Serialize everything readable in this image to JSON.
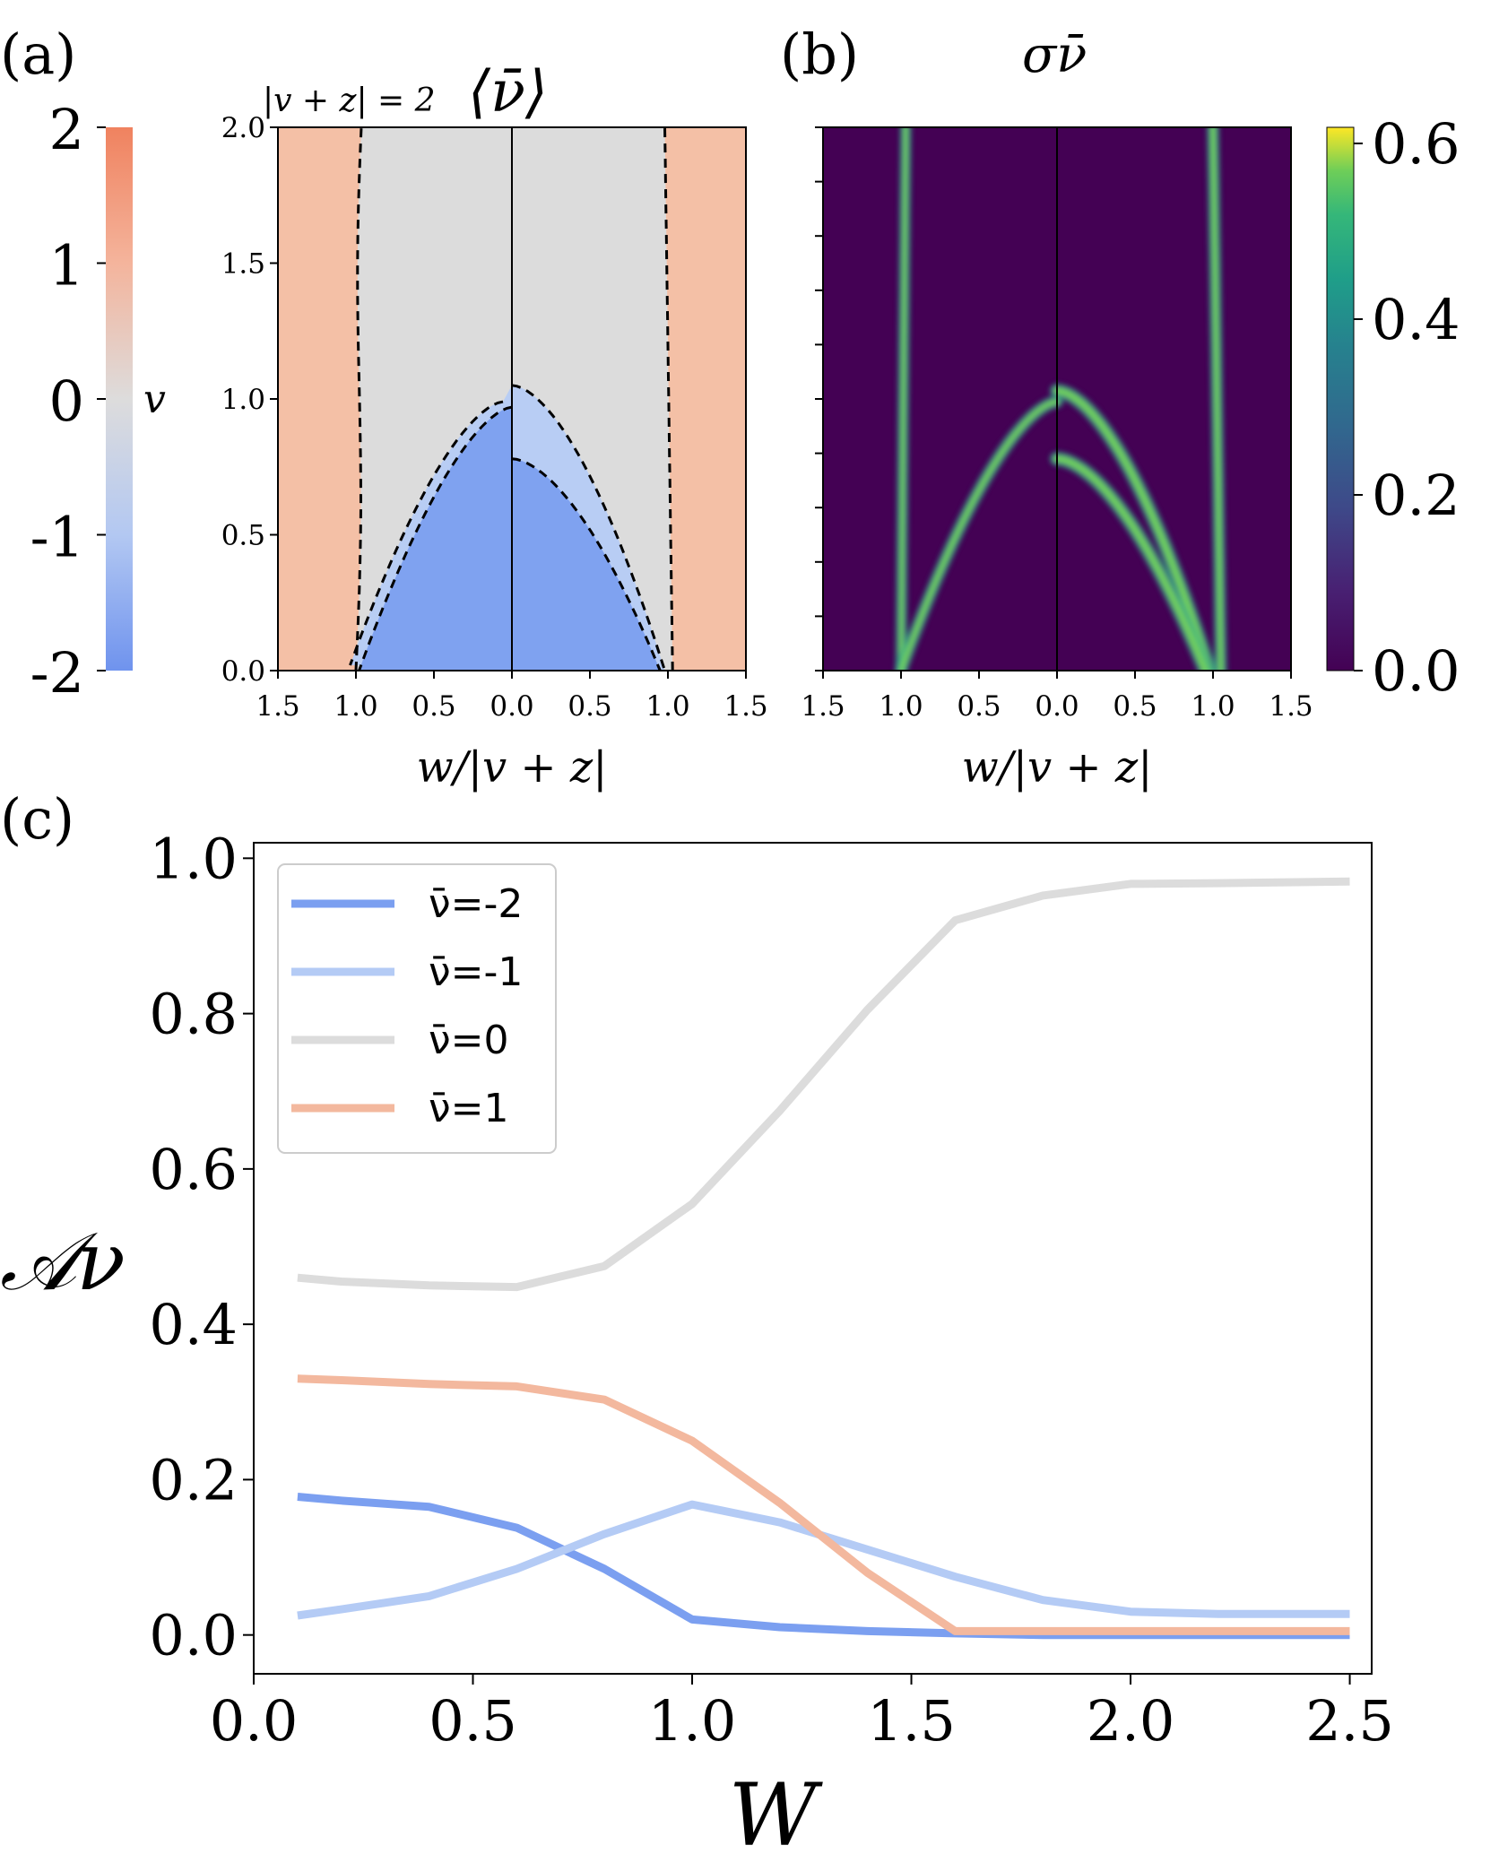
{
  "panels": {
    "a": {
      "label": "(a)"
    },
    "b": {
      "label": "(b)"
    },
    "c": {
      "label": "(c)"
    }
  },
  "colors": {
    "nu_minus2": "#7b9ff0",
    "nu_minus1": "#b4cbf5",
    "nu_0": "#dcdcdc",
    "nu_1": "#f3b89e",
    "viridis_dark": "#440154",
    "viridis_bright": "#7ad151",
    "cmap_red": "#f0825f",
    "cmap_blue": "#6f93ee"
  },
  "chart_data": [
    {
      "type": "heatmap",
      "panel": "a",
      "title_prefix": "|v + z| = 2",
      "title": "⟨ν̄⟩",
      "xlabel": "w/|v + z|",
      "xticks": [
        "1.5",
        "1.0",
        "0.5",
        "0.0",
        "0.5",
        "1.0",
        "1.5"
      ],
      "yticks": [
        "0.0",
        "0.5",
        "1.0",
        "1.5",
        "2.0"
      ],
      "xlim": [
        -1.5,
        1.5
      ],
      "ylim": [
        0.0,
        2.0
      ],
      "colorbar": {
        "label": "v",
        "ticks": [
          "2",
          "1",
          "0",
          "-1",
          "-2"
        ],
        "range": [
          -2,
          2
        ],
        "colors": [
          "#f0825f",
          "#dddcdc",
          "#6f93ee"
        ]
      },
      "boundaries": {
        "outer_left_x": -1.0,
        "outer_right_x": 1.0,
        "dome_left_peak": 0.97,
        "dome_right_outer_peak": 1.05,
        "dome_right_inner_peak": 0.78
      }
    },
    {
      "type": "heatmap",
      "panel": "b",
      "title": "σν̄",
      "xlabel": "w/|v + z|",
      "xticks": [
        "1.5",
        "1.0",
        "0.5",
        "0.0",
        "0.5",
        "1.0",
        "1.5"
      ],
      "xlim": [
        -1.5,
        1.5
      ],
      "ylim": [
        0.0,
        2.0
      ],
      "colorbar": {
        "ticks": [
          "0.6",
          "0.4",
          "0.2",
          "0.0"
        ],
        "range": [
          0.0,
          0.6
        ]
      }
    },
    {
      "type": "line",
      "panel": "c",
      "xlabel": "W",
      "ylabel": "𝒜ν",
      "xlim": [
        0.0,
        2.55
      ],
      "ylim": [
        -0.05,
        1.02
      ],
      "xticks": [
        "0.0",
        "0.5",
        "1.0",
        "1.5",
        "2.0",
        "2.5"
      ],
      "yticks": [
        "0.0",
        "0.2",
        "0.4",
        "0.6",
        "0.8",
        "1.0"
      ],
      "legend": "top-left",
      "x": [
        0.1,
        0.2,
        0.4,
        0.6,
        0.8,
        1.0,
        1.2,
        1.4,
        1.6,
        1.8,
        2.0,
        2.2,
        2.5
      ],
      "series": [
        {
          "name": "ν̄=-2",
          "color": "#7b9ff0",
          "values": [
            0.178,
            0.173,
            0.165,
            0.138,
            0.085,
            0.02,
            0.01,
            0.005,
            0.002,
            0.0,
            0.0,
            0.0,
            0.0
          ]
        },
        {
          "name": "ν̄=-1",
          "color": "#b4cbf5",
          "values": [
            0.025,
            0.033,
            0.05,
            0.085,
            0.13,
            0.168,
            0.145,
            0.11,
            0.075,
            0.045,
            0.03,
            0.027,
            0.027
          ]
        },
        {
          "name": "ν̄=0",
          "color": "#dcdcdc",
          "values": [
            0.46,
            0.455,
            0.45,
            0.448,
            0.475,
            0.555,
            0.675,
            0.805,
            0.92,
            0.952,
            0.967,
            0.968,
            0.97
          ]
        },
        {
          "name": "ν̄=1",
          "color": "#f3b89e",
          "values": [
            0.33,
            0.328,
            0.323,
            0.32,
            0.303,
            0.25,
            0.17,
            0.08,
            0.005,
            0.005,
            0.005,
            0.005,
            0.005
          ]
        }
      ]
    }
  ]
}
